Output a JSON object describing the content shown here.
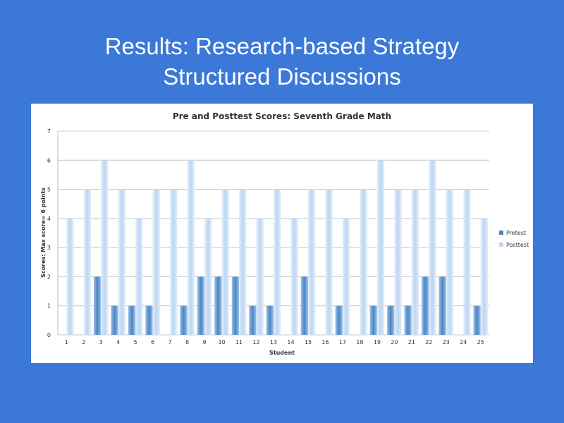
{
  "slide": {
    "title_line1": "Results: Research-based Strategy",
    "title_line2": "Structured Discussions"
  },
  "colors": {
    "background": "#3b78d8",
    "pretest": "#4a86c4",
    "posttest": "#bcd6f2",
    "grid": "#c8c8c8"
  },
  "chart_data": {
    "type": "bar",
    "title": "Pre and Posttest Scores: Seventh Grade Math",
    "xlabel": "Student",
    "ylabel": "Scores: Max score= 6 points",
    "ylim": [
      0,
      7
    ],
    "yticks": [
      "0",
      "1",
      "2",
      "3",
      "4",
      "5",
      "6",
      "7"
    ],
    "grid": "horizontal",
    "legend_position": "right",
    "categories": [
      "1",
      "2",
      "3",
      "4",
      "5",
      "6",
      "7",
      "8",
      "9",
      "10",
      "11",
      "12",
      "13",
      "14",
      "15",
      "16",
      "17",
      "18",
      "19",
      "20",
      "21",
      "22",
      "23",
      "24",
      "25"
    ],
    "series": [
      {
        "name": "Pretest",
        "values": [
          0,
          0,
          2,
          1,
          1,
          1,
          0,
          1,
          2,
          2,
          2,
          1,
          1,
          0,
          2,
          0,
          1,
          0,
          1,
          1,
          1,
          2,
          2,
          0,
          1
        ]
      },
      {
        "name": "Posttest",
        "values": [
          4,
          5,
          6,
          5,
          4,
          5,
          5,
          6,
          4,
          5,
          5,
          4,
          5,
          4,
          5,
          5,
          4,
          5,
          6,
          5,
          5,
          6,
          5,
          5,
          4
        ]
      }
    ]
  }
}
